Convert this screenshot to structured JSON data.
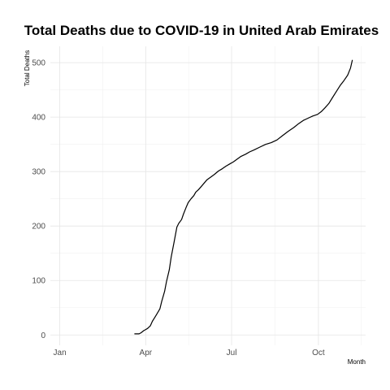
{
  "chart_data": {
    "type": "line",
    "title": "Total Deaths due to COVID-19 in United Arab Emirates",
    "xlabel": "Month",
    "ylabel": "Total Deaths",
    "x_ticks": [
      "Jan",
      "Apr",
      "Jul",
      "Oct"
    ],
    "x_tick_dates": [
      "2020-01-01",
      "2020-04-01",
      "2020-07-01",
      "2020-10-01"
    ],
    "xlim": [
      "2019-12-22",
      "2020-11-20"
    ],
    "y_ticks": [
      0,
      100,
      200,
      300,
      400,
      500
    ],
    "ylim": [
      -19,
      530
    ],
    "grid": true,
    "legend": "none",
    "line_color": "#000000",
    "series": [
      {
        "x": [
          "2020-03-20",
          "2020-03-25",
          "2020-03-27",
          "2020-03-30",
          "2020-04-01",
          "2020-04-03",
          "2020-04-06",
          "2020-04-08",
          "2020-04-11",
          "2020-04-13",
          "2020-04-16",
          "2020-04-18",
          "2020-04-21",
          "2020-04-23",
          "2020-04-26",
          "2020-04-28",
          "2020-05-01",
          "2020-05-04",
          "2020-05-06",
          "2020-05-09",
          "2020-05-11",
          "2020-05-14",
          "2020-05-16",
          "2020-05-19",
          "2020-05-22",
          "2020-05-24",
          "2020-05-27",
          "2020-05-30",
          "2020-06-02",
          "2020-06-05",
          "2020-06-09",
          "2020-06-13",
          "2020-06-17",
          "2020-06-21",
          "2020-06-25",
          "2020-06-29",
          "2020-07-03",
          "2020-07-07",
          "2020-07-11",
          "2020-07-16",
          "2020-07-20",
          "2020-07-25",
          "2020-07-31",
          "2020-08-06",
          "2020-08-12",
          "2020-08-18",
          "2020-08-24",
          "2020-08-30",
          "2020-09-05",
          "2020-09-10",
          "2020-09-15",
          "2020-09-20",
          "2020-09-25",
          "2020-09-30",
          "2020-10-04",
          "2020-10-08",
          "2020-10-12",
          "2020-10-16",
          "2020-10-20",
          "2020-10-24",
          "2020-10-28",
          "2020-11-01",
          "2020-11-04",
          "2020-11-06"
        ],
        "y": [
          2,
          2,
          4,
          8,
          10,
          12,
          17,
          25,
          33,
          39,
          48,
          62,
          80,
          98,
          120,
          143,
          170,
          198,
          205,
          212,
          222,
          235,
          243,
          250,
          256,
          262,
          267,
          273,
          279,
          285,
          290,
          295,
          301,
          305,
          310,
          314,
          318,
          323,
          328,
          332,
          336,
          340,
          345,
          350,
          353,
          358,
          366,
          374,
          381,
          388,
          394,
          398,
          402,
          405,
          410,
          417,
          425,
          436,
          447,
          458,
          467,
          477,
          490,
          505
        ]
      }
    ]
  }
}
